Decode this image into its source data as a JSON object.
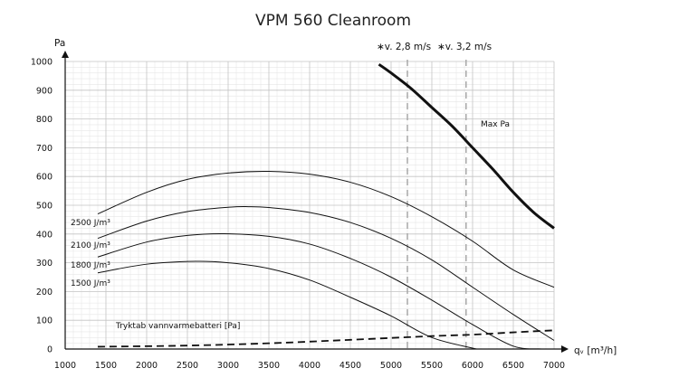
{
  "chart_data": {
    "type": "line",
    "title": "VPM 560 Cleanroom",
    "ylabel": "Pa",
    "xlabel": "qᵥ [m³/h]",
    "xlim": [
      1000,
      7000
    ],
    "ylim": [
      0,
      1000
    ],
    "x_ticks": [
      "1000",
      "1500",
      "2000",
      "2500",
      "3000",
      "3500",
      "4000",
      "4500",
      "5000",
      "5500",
      "6000",
      "6500",
      "7000"
    ],
    "y_ticks": [
      "0",
      "100",
      "200",
      "300",
      "400",
      "500",
      "600",
      "700",
      "800",
      "900",
      "1000"
    ],
    "grid": true,
    "series": [
      {
        "name": "2500 J/m³",
        "style": "thin",
        "x": [
          1400,
          2000,
          2500,
          3000,
          3500,
          4000,
          4500,
          5000,
          5500,
          6000,
          6500,
          7000
        ],
        "y": [
          470,
          545,
          590,
          612,
          618,
          608,
          580,
          530,
          460,
          375,
          275,
          215
        ]
      },
      {
        "name": "2100 J/m³",
        "style": "thin",
        "x": [
          1400,
          2000,
          2500,
          3000,
          3250,
          3500,
          4000,
          4500,
          5000,
          5500,
          6000,
          6500,
          7000
        ],
        "y": [
          385,
          445,
          478,
          493,
          495,
          492,
          475,
          440,
          385,
          310,
          215,
          120,
          30
        ]
      },
      {
        "name": "1800 J/m³",
        "style": "thin",
        "x": [
          1400,
          2000,
          2500,
          2950,
          3500,
          4000,
          4500,
          5000,
          5500,
          6000,
          6500,
          6850
        ],
        "y": [
          320,
          372,
          395,
          401,
          392,
          365,
          315,
          250,
          170,
          85,
          10,
          0
        ]
      },
      {
        "name": "1500 J/m³",
        "style": "thin",
        "x": [
          1400,
          2000,
          2600,
          3000,
          3500,
          4000,
          4500,
          5000,
          5500,
          6050
        ],
        "y": [
          265,
          295,
          305,
          300,
          280,
          240,
          180,
          115,
          40,
          0
        ]
      },
      {
        "name": "Max Pa",
        "style": "thick",
        "x": [
          4850,
          5000,
          5250,
          5500,
          5750,
          6000,
          6250,
          6500,
          6750,
          7000
        ],
        "y": [
          990,
          960,
          905,
          840,
          775,
          700,
          625,
          545,
          475,
          420
        ]
      },
      {
        "name": "Tryktab vannvarmebatteri [Pa]",
        "style": "dashed",
        "x": [
          1400,
          2500,
          3500,
          4500,
          5500,
          6000,
          6500,
          7000
        ],
        "y": [
          8,
          12,
          20,
          32,
          45,
          50,
          58,
          65
        ]
      }
    ],
    "reference_lines": [
      {
        "label": "∗v. 2,8 m/s",
        "x": 5200
      },
      {
        "label": "∗v. 3,2 m/s",
        "x": 5920
      }
    ],
    "curve_labels": [
      "2500 J/m³",
      "2100 J/m³",
      "1800 J/m³",
      "1500 J/m³",
      "Max Pa",
      "Tryktab vannvarmebatteri [Pa]"
    ]
  }
}
